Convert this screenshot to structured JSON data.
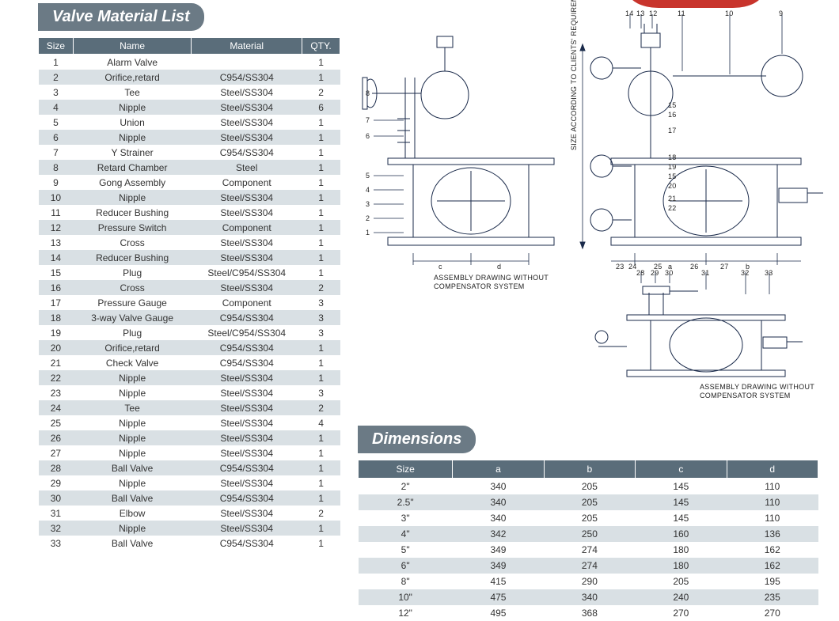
{
  "colors": {
    "header_bg": "#6b7a85",
    "table_header_bg": "#5a6d7a",
    "row_alt_bg": "#d9e0e4",
    "row_bg": "#ffffff",
    "diagram_stroke": "#1a2a4a",
    "red_part": "#c8342c"
  },
  "materialList": {
    "title": "Valve Material List",
    "columns": [
      "Size",
      "Name",
      "Material",
      "QTY."
    ],
    "rows": [
      [
        "1",
        "Alarm Valve",
        "",
        "1"
      ],
      [
        "2",
        "Orifice,retard",
        "C954/SS304",
        "1"
      ],
      [
        "3",
        "Tee",
        "Steel/SS304",
        "2"
      ],
      [
        "4",
        "Nipple",
        "Steel/SS304",
        "6"
      ],
      [
        "5",
        "Union",
        "Steel/SS304",
        "1"
      ],
      [
        "6",
        "Nipple",
        "Steel/SS304",
        "1"
      ],
      [
        "7",
        "Y Strainer",
        "C954/SS304",
        "1"
      ],
      [
        "8",
        "Retard Chamber",
        "Steel",
        "1"
      ],
      [
        "9",
        "Gong Assembly",
        "Component",
        "1"
      ],
      [
        "10",
        "Nipple",
        "Steel/SS304",
        "1"
      ],
      [
        "11",
        "Reducer Bushing",
        "Steel/SS304",
        "1"
      ],
      [
        "12",
        "Pressure Switch",
        "Component",
        "1"
      ],
      [
        "13",
        "Cross",
        "Steel/SS304",
        "1"
      ],
      [
        "14",
        "Reducer Bushing",
        "Steel/SS304",
        "1"
      ],
      [
        "15",
        "Plug",
        "Steel/C954/SS304",
        "1"
      ],
      [
        "16",
        "Cross",
        "Steel/SS304",
        "2"
      ],
      [
        "17",
        "Pressure Gauge",
        "Component",
        "3"
      ],
      [
        "18",
        "3-way Valve Gauge",
        "C954/SS304",
        "3"
      ],
      [
        "19",
        "Plug",
        "Steel/C954/SS304",
        "3"
      ],
      [
        "20",
        "Orifice,retard",
        "C954/SS304",
        "1"
      ],
      [
        "21",
        "Check Valve",
        "C954/SS304",
        "1"
      ],
      [
        "22",
        "Nipple",
        "Steel/SS304",
        "1"
      ],
      [
        "23",
        "Nipple",
        "Steel/SS304",
        "3"
      ],
      [
        "24",
        "Tee",
        "Steel/SS304",
        "2"
      ],
      [
        "25",
        "Nipple",
        "Steel/SS304",
        "4"
      ],
      [
        "26",
        "Nipple",
        "Steel/SS304",
        "1"
      ],
      [
        "27",
        "Nipple",
        "Steel/SS304",
        "1"
      ],
      [
        "28",
        "Ball Valve",
        "C954/SS304",
        "1"
      ],
      [
        "29",
        "Nipple",
        "Steel/SS304",
        "1"
      ],
      [
        "30",
        "Ball Valve",
        "C954/SS304",
        "1"
      ],
      [
        "31",
        "Elbow",
        "Steel/SS304",
        "2"
      ],
      [
        "32",
        "Nipple",
        "Steel/SS304",
        "1"
      ],
      [
        "33",
        "Ball Valve",
        "C954/SS304",
        "1"
      ]
    ]
  },
  "dimensions": {
    "title": "Dimensions",
    "columns": [
      "Size",
      "a",
      "b",
      "c",
      "d"
    ],
    "rows": [
      [
        "2\"",
        "340",
        "205",
        "145",
        "110"
      ],
      [
        "2.5\"",
        "340",
        "205",
        "145",
        "110"
      ],
      [
        "3\"",
        "340",
        "205",
        "145",
        "110"
      ],
      [
        "4\"",
        "342",
        "250",
        "160",
        "136"
      ],
      [
        "5\"",
        "349",
        "274",
        "180",
        "162"
      ],
      [
        "6\"",
        "349",
        "274",
        "180",
        "162"
      ],
      [
        "8\"",
        "415",
        "290",
        "205",
        "195"
      ],
      [
        "10\"",
        "475",
        "340",
        "240",
        "235"
      ],
      [
        "12\"",
        "495",
        "368",
        "270",
        "270"
      ]
    ]
  },
  "diagram": {
    "caption1": "ASSEMBLY DRAWING WITHOUT\nCOMPENSATOR SYSTEM",
    "caption2": "ASSEMBLY DRAWING WITHOUT\nCOMPENSATOR SYSTEM",
    "vertical_label": "SIZE ACCORDING TO CLIENTS' REQUIREMENT",
    "callouts_top": [
      "14",
      "13",
      "12",
      "11",
      "10",
      "9"
    ],
    "callouts_left": [
      "8",
      "7",
      "6",
      "5",
      "4",
      "3",
      "2",
      "1"
    ],
    "callouts_right": [
      "15",
      "16",
      "17",
      "18",
      "19",
      "15",
      "20",
      "21",
      "22"
    ],
    "dim_letters_low": [
      "c",
      "d",
      "23",
      "24",
      "25",
      "26",
      "27",
      "a",
      "b"
    ],
    "callouts_bottom": [
      "28",
      "29",
      "30",
      "31",
      "32",
      "33"
    ]
  }
}
